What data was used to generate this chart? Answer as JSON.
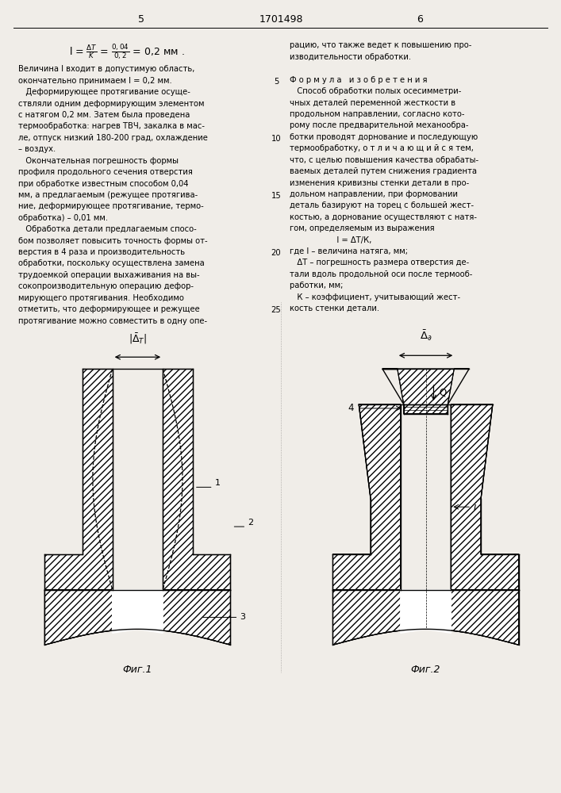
{
  "page_width": 7.07,
  "page_height": 10.0,
  "bg_color": "#f0ede8",
  "header": {
    "left_num": "5",
    "center_num": "1701498",
    "right_num": "6"
  },
  "fig1_caption": "Фиг.1",
  "fig2_caption": "Фиг.2"
}
